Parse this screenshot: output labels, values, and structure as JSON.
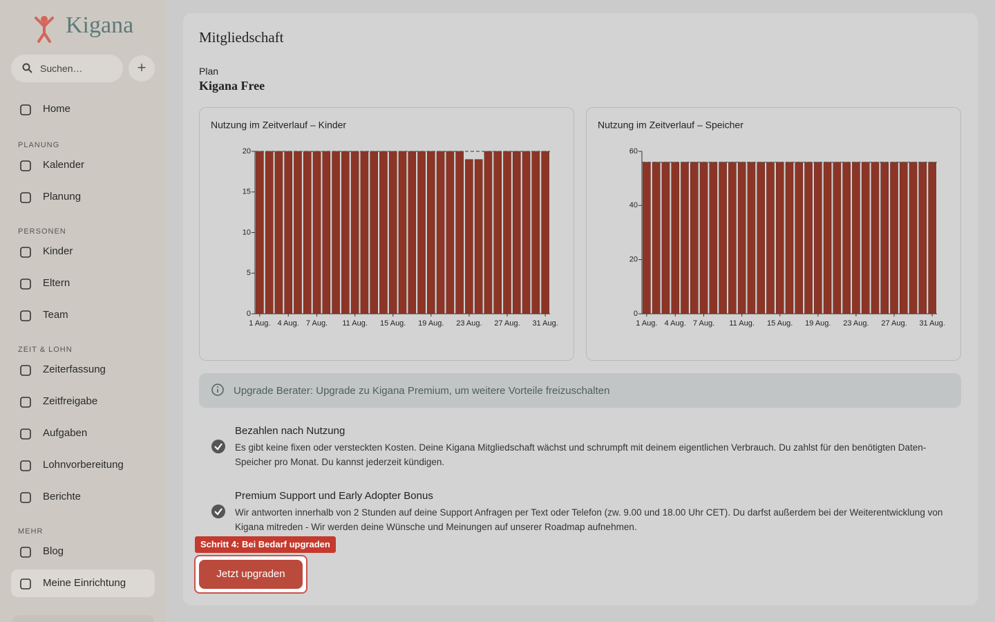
{
  "sidebar": {
    "logo": "Kigana",
    "search": "Suchen…",
    "home": "Home",
    "sections": [
      {
        "heading": "PLANUNG",
        "items": [
          "Kalender",
          "Planung"
        ]
      },
      {
        "heading": "PERSONEN",
        "items": [
          "Kinder",
          "Eltern",
          "Team"
        ]
      },
      {
        "heading": "ZEIT & LOHN",
        "items": [
          "Zeiterfassung",
          "Zeitfreigabe",
          "Aufgaben",
          "Lohnvorbereitung",
          "Berichte"
        ]
      },
      {
        "heading": "MEHR",
        "items": [
          "Blog",
          "Meine Einrichtung"
        ]
      }
    ]
  },
  "main": {
    "title": "Mitgliedschaft",
    "plan_label": "Plan",
    "plan": "Kigana Free",
    "info": "Upgrade Berater: Upgrade zu Kigana Premium, um weitere Vorteile freizuschalten",
    "features": [
      {
        "title": "Bezahlen nach Nutzung",
        "text": "Es gibt keine fixen oder versteckten Kosten. Deine Kigana Mitgliedschaft wächst und schrumpft mit deinem eigentlichen Verbrauch. Du zahlst für den benötigten Daten-Speicher pro Monat. Du kannst jederzeit kündigen."
      },
      {
        "title": "Premium Support und Early Adopter Bonus",
        "text": "Wir antworten innerhalb von 2 Stunden auf deine Support Anfragen per Text oder Telefon (zw. 9.00 und 18.00 Uhr CET). Du darfst außerdem bei der Weiterentwicklung von Kigana mitreden - Wir werden deine Wünsche und Meinungen auf unserer Roadmap aufnehmen."
      }
    ],
    "tour_step": "Schritt 4: Bei Bedarf upgraden",
    "button": "Jetzt upgraden"
  },
  "chart_data": [
    {
      "type": "bar",
      "title": "Nutzung im Zeitverlauf – Kinder",
      "categories": [
        "1 Aug.",
        null,
        null,
        "4 Aug.",
        null,
        null,
        "7 Aug.",
        null,
        null,
        null,
        "11 Aug.",
        null,
        null,
        null,
        "15 Aug.",
        null,
        null,
        null,
        "19 Aug.",
        null,
        null,
        null,
        "23 Aug.",
        null,
        null,
        null,
        "27 Aug.",
        null,
        null,
        null,
        "31 Aug."
      ],
      "values": [
        20,
        20,
        20,
        20,
        20,
        20,
        20,
        20,
        20,
        20,
        20,
        20,
        20,
        20,
        20,
        20,
        20,
        20,
        20,
        20,
        20,
        20,
        19,
        19,
        20,
        20,
        20,
        20,
        20,
        20,
        20
      ],
      "color": "#8c3526",
      "limit": 20,
      "ylim": [
        0,
        20
      ],
      "yticks": [
        0,
        5,
        10,
        15,
        20
      ]
    },
    {
      "type": "bar",
      "title": "Nutzung im Zeitverlauf – Speicher",
      "categories": [
        "1 Aug.",
        null,
        null,
        "4 Aug.",
        null,
        null,
        "7 Aug.",
        null,
        null,
        null,
        "11 Aug.",
        null,
        null,
        null,
        "15 Aug.",
        null,
        null,
        null,
        "19 Aug.",
        null,
        null,
        null,
        "23 Aug.",
        null,
        null,
        null,
        "27 Aug.",
        null,
        null,
        null,
        "31 Aug."
      ],
      "values": [
        56,
        56,
        56,
        56,
        56,
        56,
        56,
        56,
        56,
        56,
        56,
        56,
        56,
        56,
        56,
        56,
        56,
        56,
        56,
        56,
        56,
        56,
        56,
        56,
        56,
        56,
        56,
        56,
        56,
        56,
        56
      ],
      "color": "#8c3526",
      "limit": 56,
      "ylim": [
        0,
        60
      ],
      "yticks": [
        0,
        20,
        40,
        60
      ]
    }
  ]
}
